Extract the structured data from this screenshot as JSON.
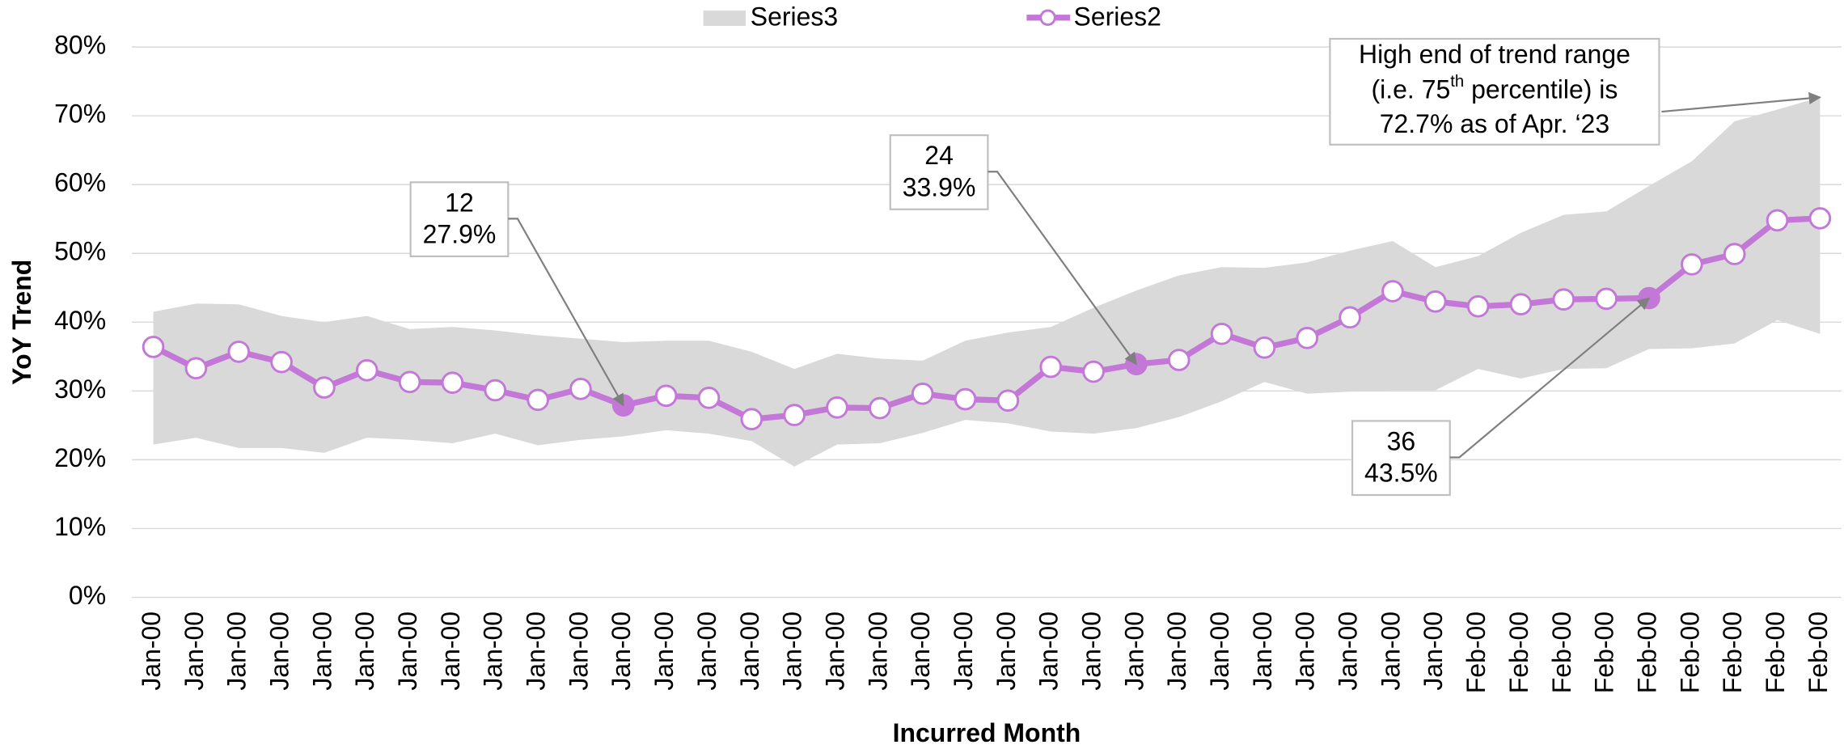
{
  "chart_data": {
    "type": "line",
    "xlabel": "Incurred Month",
    "ylabel": "YoY Trend",
    "categories": [
      "Jan-00",
      "Jan-00",
      "Jan-00",
      "Jan-00",
      "Jan-00",
      "Jan-00",
      "Jan-00",
      "Jan-00",
      "Jan-00",
      "Jan-00",
      "Jan-00",
      "Jan-00",
      "Jan-00",
      "Jan-00",
      "Jan-00",
      "Jan-00",
      "Jan-00",
      "Jan-00",
      "Jan-00",
      "Jan-00",
      "Jan-00",
      "Jan-00",
      "Jan-00",
      "Jan-00",
      "Jan-00",
      "Jan-00",
      "Jan-00",
      "Jan-00",
      "Jan-00",
      "Jan-00",
      "Jan-00",
      "Feb-00",
      "Feb-00",
      "Feb-00",
      "Feb-00",
      "Feb-00",
      "Feb-00",
      "Feb-00",
      "Feb-00",
      "Feb-00"
    ],
    "band": {
      "name": "Series3",
      "color": "#d9d9d9",
      "low": [
        22.2,
        23.2,
        21.7,
        21.7,
        21.0,
        23.2,
        22.9,
        22.4,
        23.8,
        22.1,
        22.9,
        23.4,
        24.3,
        23.8,
        22.7,
        19.0,
        22.2,
        22.4,
        23.9,
        25.8,
        25.3,
        24.1,
        23.8,
        24.6,
        26.2,
        28.5,
        31.3,
        29.6,
        29.9,
        30.1,
        30.1,
        33.2,
        31.8,
        33.2,
        33.3,
        36.1,
        36.2,
        36.9,
        40.3,
        38.3
      ],
      "high": [
        41.5,
        42.7,
        42.6,
        40.9,
        40.0,
        40.9,
        39.0,
        39.3,
        38.8,
        38.1,
        37.6,
        37.1,
        37.3,
        37.3,
        35.7,
        33.2,
        35.4,
        34.7,
        34.4,
        37.3,
        38.5,
        39.3,
        42.1,
        44.6,
        46.8,
        48.0,
        47.9,
        48.7,
        50.4,
        51.8,
        48.0,
        49.6,
        53.0,
        55.6,
        56.1,
        59.8,
        63.4,
        69.2,
        70.9,
        72.7
      ]
    },
    "series": [
      {
        "name": "Series2",
        "color": "#c377d7",
        "values": [
          36.4,
          33.3,
          35.7,
          34.2,
          30.5,
          33.0,
          31.3,
          31.2,
          30.1,
          28.7,
          30.3,
          27.9,
          29.3,
          29.0,
          25.9,
          26.5,
          27.6,
          27.5,
          29.6,
          28.8,
          28.6,
          33.5,
          32.8,
          33.9,
          34.5,
          38.3,
          36.3,
          37.7,
          40.7,
          44.5,
          43.0,
          42.3,
          42.6,
          43.3,
          43.4,
          43.5,
          48.4,
          49.9,
          54.8,
          55.1
        ]
      }
    ],
    "ylim": [
      0,
      80
    ],
    "yticks": [
      {
        "value": 0,
        "label": "0%"
      },
      {
        "value": 10,
        "label": "10%"
      },
      {
        "value": 20,
        "label": "20%"
      },
      {
        "value": 30,
        "label": "30%"
      },
      {
        "value": 40,
        "label": "40%"
      },
      {
        "value": 50,
        "label": "50%"
      },
      {
        "value": 60,
        "label": "60%"
      },
      {
        "value": 70,
        "label": "70%"
      },
      {
        "value": 80,
        "label": "80%"
      }
    ],
    "grid": true,
    "legend": "top",
    "point_annotations": [
      {
        "point": 12,
        "value": 27.9,
        "value_label": "27.9%"
      },
      {
        "point": 24,
        "value": 33.9,
        "value_label": "33.9%"
      },
      {
        "point": 36,
        "value": 43.5,
        "value_label": "43.5%"
      }
    ],
    "note": {
      "lines": [
        "High end of trend range",
        [
          "(i.e. 75",
          "th",
          " percentile) is"
        ],
        "72.7% as of Apr. ‘23"
      ],
      "value": 72.7
    }
  }
}
